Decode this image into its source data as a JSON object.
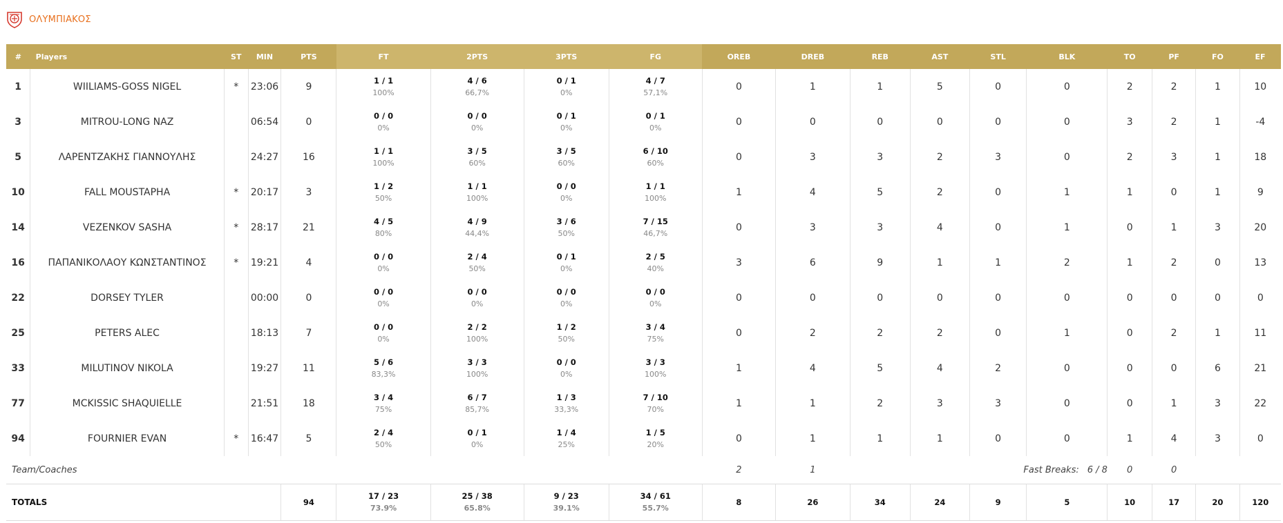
{
  "team": {
    "name": "ΟΛΥΜΠΙΑΚΟΣ",
    "logo_icon": "olympiacos-logo-icon",
    "accent": "#e8701e"
  },
  "colors": {
    "header_bg": "#c2a85a",
    "header_bg_alt": "#cdb56c"
  },
  "columns": {
    "num": "#",
    "player": "Players",
    "st": "ST",
    "min": "MIN",
    "pts": "PTS",
    "ft": "FT",
    "two": "2PTS",
    "three": "3PTS",
    "fg": "FG",
    "oreb": "OREB",
    "dreb": "DREB",
    "reb": "REB",
    "ast": "AST",
    "stl": "STL",
    "blk": "BLK",
    "to": "TO",
    "pf": "PF",
    "fo": "FO",
    "ef": "EF"
  },
  "players": [
    {
      "num": "1",
      "name": "WIILIAMS-GOSS NIGEL",
      "st": "*",
      "min": "23:06",
      "pts": "9",
      "ft": "1 / 1",
      "ft_pct": "100%",
      "two": "4 / 6",
      "two_pct": "66,7%",
      "three": "0 / 1",
      "three_pct": "0%",
      "fg": "4 / 7",
      "fg_pct": "57,1%",
      "oreb": "0",
      "dreb": "1",
      "reb": "1",
      "ast": "5",
      "stl": "0",
      "blk": "0",
      "to": "2",
      "pf": "2",
      "fo": "1",
      "ef": "10"
    },
    {
      "num": "3",
      "name": "MITROU-LONG NAZ",
      "st": "",
      "min": "06:54",
      "pts": "0",
      "ft": "0 / 0",
      "ft_pct": "0%",
      "two": "0 / 0",
      "two_pct": "0%",
      "three": "0 / 1",
      "three_pct": "0%",
      "fg": "0 / 1",
      "fg_pct": "0%",
      "oreb": "0",
      "dreb": "0",
      "reb": "0",
      "ast": "0",
      "stl": "0",
      "blk": "0",
      "to": "3",
      "pf": "2",
      "fo": "1",
      "ef": "-4"
    },
    {
      "num": "5",
      "name": "ΛΑΡΕΝΤΖΑΚΗΣ ΓΙΑΝΝΟΥΛΗΣ",
      "st": "",
      "min": "24:27",
      "pts": "16",
      "ft": "1 / 1",
      "ft_pct": "100%",
      "two": "3 / 5",
      "two_pct": "60%",
      "three": "3 / 5",
      "three_pct": "60%",
      "fg": "6 / 10",
      "fg_pct": "60%",
      "oreb": "0",
      "dreb": "3",
      "reb": "3",
      "ast": "2",
      "stl": "3",
      "blk": "0",
      "to": "2",
      "pf": "3",
      "fo": "1",
      "ef": "18"
    },
    {
      "num": "10",
      "name": "FALL MOUSTAPHA",
      "st": "*",
      "min": "20:17",
      "pts": "3",
      "ft": "1 / 2",
      "ft_pct": "50%",
      "two": "1 / 1",
      "two_pct": "100%",
      "three": "0 / 0",
      "three_pct": "0%",
      "fg": "1 / 1",
      "fg_pct": "100%",
      "oreb": "1",
      "dreb": "4",
      "reb": "5",
      "ast": "2",
      "stl": "0",
      "blk": "1",
      "to": "1",
      "pf": "0",
      "fo": "1",
      "ef": "9"
    },
    {
      "num": "14",
      "name": "VEZENKOV SASHA",
      "st": "*",
      "min": "28:17",
      "pts": "21",
      "ft": "4 / 5",
      "ft_pct": "80%",
      "two": "4 / 9",
      "two_pct": "44,4%",
      "three": "3 / 6",
      "three_pct": "50%",
      "fg": "7 / 15",
      "fg_pct": "46,7%",
      "oreb": "0",
      "dreb": "3",
      "reb": "3",
      "ast": "4",
      "stl": "0",
      "blk": "1",
      "to": "0",
      "pf": "1",
      "fo": "3",
      "ef": "20"
    },
    {
      "num": "16",
      "name": "ΠΑΠΑΝΙΚΟΛΑΟΥ ΚΩΝΣΤΑΝΤΙΝΟΣ",
      "st": "*",
      "min": "19:21",
      "pts": "4",
      "ft": "0 / 0",
      "ft_pct": "0%",
      "two": "2 / 4",
      "two_pct": "50%",
      "three": "0 / 1",
      "three_pct": "0%",
      "fg": "2 / 5",
      "fg_pct": "40%",
      "oreb": "3",
      "dreb": "6",
      "reb": "9",
      "ast": "1",
      "stl": "1",
      "blk": "2",
      "to": "1",
      "pf": "2",
      "fo": "0",
      "ef": "13"
    },
    {
      "num": "22",
      "name": "DORSEY TYLER",
      "st": "",
      "min": "00:00",
      "pts": "0",
      "ft": "0 / 0",
      "ft_pct": "0%",
      "two": "0 / 0",
      "two_pct": "0%",
      "three": "0 / 0",
      "three_pct": "0%",
      "fg": "0 / 0",
      "fg_pct": "0%",
      "oreb": "0",
      "dreb": "0",
      "reb": "0",
      "ast": "0",
      "stl": "0",
      "blk": "0",
      "to": "0",
      "pf": "0",
      "fo": "0",
      "ef": "0"
    },
    {
      "num": "25",
      "name": "PETERS ALEC",
      "st": "",
      "min": "18:13",
      "pts": "7",
      "ft": "0 / 0",
      "ft_pct": "0%",
      "two": "2 / 2",
      "two_pct": "100%",
      "three": "1 / 2",
      "three_pct": "50%",
      "fg": "3 / 4",
      "fg_pct": "75%",
      "oreb": "0",
      "dreb": "2",
      "reb": "2",
      "ast": "2",
      "stl": "0",
      "blk": "1",
      "to": "0",
      "pf": "2",
      "fo": "1",
      "ef": "11"
    },
    {
      "num": "33",
      "name": "MILUTINOV NIKOLA",
      "st": "",
      "min": "19:27",
      "pts": "11",
      "ft": "5 / 6",
      "ft_pct": "83,3%",
      "two": "3 / 3",
      "two_pct": "100%",
      "three": "0 / 0",
      "three_pct": "0%",
      "fg": "3 / 3",
      "fg_pct": "100%",
      "oreb": "1",
      "dreb": "4",
      "reb": "5",
      "ast": "4",
      "stl": "2",
      "blk": "0",
      "to": "0",
      "pf": "0",
      "fo": "6",
      "ef": "21"
    },
    {
      "num": "77",
      "name": "MCKISSIC SHAQUIELLE",
      "st": "",
      "min": "21:51",
      "pts": "18",
      "ft": "3 / 4",
      "ft_pct": "75%",
      "two": "6 / 7",
      "two_pct": "85,7%",
      "three": "1 / 3",
      "three_pct": "33,3%",
      "fg": "7 / 10",
      "fg_pct": "70%",
      "oreb": "1",
      "dreb": "1",
      "reb": "2",
      "ast": "3",
      "stl": "3",
      "blk": "0",
      "to": "0",
      "pf": "1",
      "fo": "3",
      "ef": "22"
    },
    {
      "num": "94",
      "name": "FOURNIER EVAN",
      "st": "*",
      "min": "16:47",
      "pts": "5",
      "ft": "2 / 4",
      "ft_pct": "50%",
      "two": "0 / 1",
      "two_pct": "0%",
      "three": "1 / 4",
      "three_pct": "25%",
      "fg": "1 / 5",
      "fg_pct": "20%",
      "oreb": "0",
      "dreb": "1",
      "reb": "1",
      "ast": "1",
      "stl": "0",
      "blk": "0",
      "to": "1",
      "pf": "4",
      "fo": "3",
      "ef": "0"
    }
  ],
  "team_row": {
    "label": "Team/Coaches",
    "oreb": "2",
    "dreb": "1",
    "fast_breaks_label": "Fast Breaks:",
    "fast_breaks_value": "6 / 8",
    "to": "0",
    "pf": "0"
  },
  "totals": {
    "label": "TOTALS",
    "pts": "94",
    "ft": "17 / 23",
    "ft_pct": "73.9%",
    "two": "25 / 38",
    "two_pct": "65.8%",
    "three": "9 / 23",
    "three_pct": "39.1%",
    "fg": "34 / 61",
    "fg_pct": "55.7%",
    "oreb": "8",
    "dreb": "26",
    "reb": "34",
    "ast": "24",
    "stl": "9",
    "blk": "5",
    "to": "10",
    "pf": "17",
    "fo": "20",
    "ef": "120"
  }
}
